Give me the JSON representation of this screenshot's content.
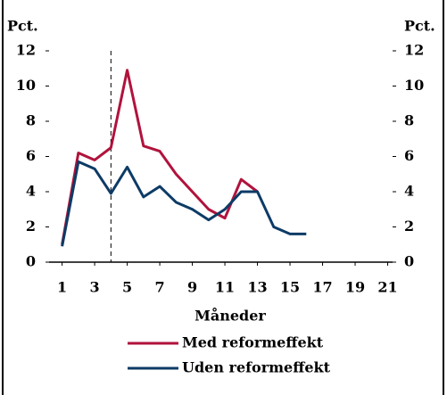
{
  "chart_data": {
    "type": "line",
    "y_label": "Pct.",
    "y2_label": "Pct.",
    "x_label": "Måneder",
    "x": [
      1,
      2,
      3,
      4,
      5,
      6,
      7,
      8,
      9,
      10,
      11,
      12,
      13,
      14,
      15,
      16
    ],
    "series": [
      {
        "name": "Med reformeffekt",
        "color": "#b0133c",
        "values": [
          1.0,
          6.2,
          5.8,
          6.5,
          10.9,
          6.6,
          6.3,
          5.0,
          4.0,
          3.0,
          2.5,
          4.7,
          4.0,
          null,
          null,
          null
        ]
      },
      {
        "name": "Uden reformeffekt",
        "color": "#0d3b66",
        "values": [
          0.9,
          5.7,
          5.3,
          3.9,
          5.4,
          3.7,
          4.3,
          3.4,
          3.0,
          2.4,
          3.0,
          4.0,
          4.0,
          2.0,
          1.6,
          1.6
        ]
      }
    ],
    "marker_line_x": 4,
    "xlim": [
      0.2,
      21.3
    ],
    "xticks": [
      1,
      3,
      5,
      7,
      9,
      11,
      13,
      15,
      17,
      19,
      21
    ],
    "ylim": [
      0,
      12
    ],
    "yticks": [
      0,
      2,
      4,
      6,
      8,
      10,
      12
    ],
    "y2lim": [
      0,
      12
    ],
    "y2ticks": [
      0,
      2,
      4,
      6,
      8,
      10,
      12
    ]
  }
}
